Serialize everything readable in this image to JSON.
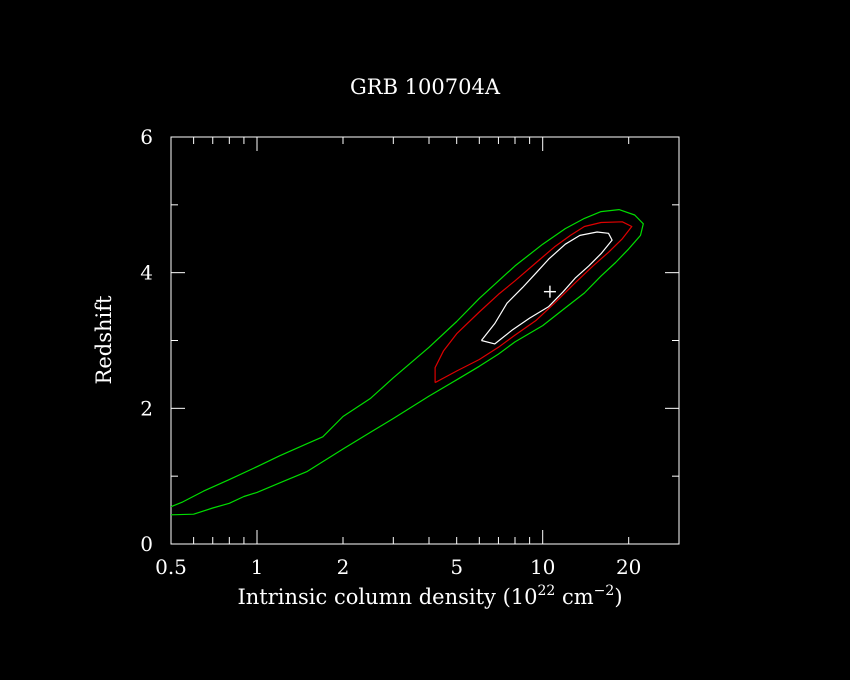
{
  "chart_data": {
    "type": "contour",
    "title": "GRB 100704A",
    "xlabel": {
      "prefix": "Intrinsic column density (10",
      "sup1": "22",
      "mid": " cm",
      "sup2": "−2",
      "suffix": ")"
    },
    "ylabel": "Redshift",
    "x_scale": "log",
    "xlim": [
      0.5,
      30
    ],
    "ylim": [
      0,
      6
    ],
    "x_tick_labels": [
      {
        "value": 0.5,
        "label": "0.5"
      },
      {
        "value": 1,
        "label": "1"
      },
      {
        "value": 2,
        "label": "2"
      },
      {
        "value": 5,
        "label": "5"
      },
      {
        "value": 10,
        "label": "10"
      },
      {
        "value": 20,
        "label": "20"
      }
    ],
    "y_tick_labels": [
      {
        "value": 0,
        "label": "0"
      },
      {
        "value": 2,
        "label": "2"
      },
      {
        "value": 4,
        "label": "4"
      },
      {
        "value": 6,
        "label": "6"
      }
    ],
    "best_fit": {
      "x": 10.6,
      "y": 3.72
    },
    "colors": {
      "outer": "#00dd00",
      "middle": "#dd0000",
      "inner": "#ffffff",
      "axes": "#ffffff",
      "background": "#000000"
    },
    "series": [
      {
        "color": "#00dd00",
        "points": [
          [
            0.5,
            0.43
          ],
          [
            0.6,
            0.44
          ],
          [
            0.7,
            0.53
          ],
          [
            0.8,
            0.6
          ],
          [
            0.9,
            0.7
          ],
          [
            1.0,
            0.76
          ],
          [
            1.2,
            0.9
          ],
          [
            1.5,
            1.07
          ],
          [
            2.0,
            1.4
          ],
          [
            2.5,
            1.65
          ],
          [
            3.0,
            1.85
          ],
          [
            4.0,
            2.18
          ],
          [
            5.0,
            2.42
          ],
          [
            6.0,
            2.62
          ],
          [
            7.0,
            2.8
          ],
          [
            8.0,
            2.98
          ],
          [
            10.0,
            3.22
          ],
          [
            12.0,
            3.48
          ],
          [
            14.0,
            3.7
          ],
          [
            16.0,
            3.95
          ],
          [
            18.0,
            4.15
          ],
          [
            20.0,
            4.35
          ],
          [
            22.0,
            4.55
          ],
          [
            22.5,
            4.72
          ],
          [
            21.0,
            4.85
          ],
          [
            18.5,
            4.93
          ],
          [
            16.0,
            4.9
          ],
          [
            14.0,
            4.8
          ],
          [
            12.0,
            4.65
          ],
          [
            10.0,
            4.42
          ],
          [
            8.0,
            4.1
          ],
          [
            6.0,
            3.62
          ],
          [
            5.0,
            3.28
          ],
          [
            4.0,
            2.9
          ],
          [
            3.0,
            2.45
          ],
          [
            2.5,
            2.15
          ],
          [
            2.0,
            1.88
          ],
          [
            1.7,
            1.58
          ],
          [
            1.5,
            1.48
          ],
          [
            1.2,
            1.3
          ],
          [
            1.0,
            1.14
          ],
          [
            0.8,
            0.95
          ],
          [
            0.65,
            0.78
          ],
          [
            0.55,
            0.62
          ],
          [
            0.5,
            0.55
          ]
        ]
      },
      {
        "color": "#dd0000",
        "points": [
          [
            4.2,
            2.38
          ],
          [
            5.0,
            2.55
          ],
          [
            6.0,
            2.72
          ],
          [
            7.0,
            2.9
          ],
          [
            8.0,
            3.08
          ],
          [
            9.5,
            3.3
          ],
          [
            11.0,
            3.55
          ],
          [
            13.0,
            3.85
          ],
          [
            15.0,
            4.1
          ],
          [
            17.0,
            4.3
          ],
          [
            19.0,
            4.5
          ],
          [
            20.5,
            4.68
          ],
          [
            19.0,
            4.75
          ],
          [
            16.0,
            4.74
          ],
          [
            14.0,
            4.68
          ],
          [
            12.5,
            4.55
          ],
          [
            11.0,
            4.38
          ],
          [
            9.5,
            4.15
          ],
          [
            8.0,
            3.88
          ],
          [
            7.0,
            3.68
          ],
          [
            6.0,
            3.42
          ],
          [
            5.0,
            3.1
          ],
          [
            4.5,
            2.85
          ],
          [
            4.2,
            2.6
          ],
          [
            4.2,
            2.38
          ]
        ]
      },
      {
        "color": "#ffffff",
        "points": [
          [
            6.1,
            3.0
          ],
          [
            6.8,
            2.95
          ],
          [
            7.8,
            3.15
          ],
          [
            9.0,
            3.33
          ],
          [
            10.5,
            3.5
          ],
          [
            11.8,
            3.72
          ],
          [
            13.0,
            3.92
          ],
          [
            14.5,
            4.1
          ],
          [
            16.0,
            4.28
          ],
          [
            17.5,
            4.48
          ],
          [
            17.0,
            4.58
          ],
          [
            15.5,
            4.6
          ],
          [
            13.5,
            4.55
          ],
          [
            12.0,
            4.42
          ],
          [
            10.5,
            4.2
          ],
          [
            9.5,
            4.0
          ],
          [
            8.5,
            3.78
          ],
          [
            7.5,
            3.55
          ],
          [
            6.8,
            3.25
          ],
          [
            6.1,
            3.0
          ]
        ]
      }
    ]
  }
}
